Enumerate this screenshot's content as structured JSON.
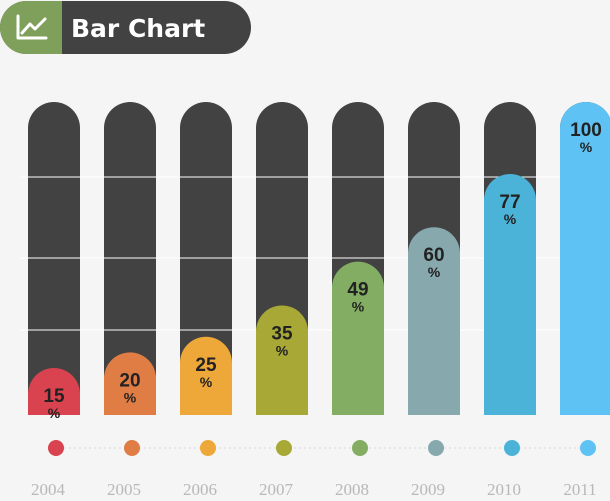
{
  "chart_data": {
    "type": "bar",
    "title": "Bar Chart",
    "categories": [
      "2004",
      "2005",
      "2006",
      "2007",
      "2008",
      "2009",
      "2010",
      "2011"
    ],
    "values": [
      15,
      20,
      25,
      35,
      49,
      60,
      77,
      100
    ],
    "value_suffix": "%",
    "ylim": [
      0,
      100
    ],
    "grid": true,
    "colors": [
      "#d9434f",
      "#e07d45",
      "#eea83a",
      "#a8a837",
      "#82ad63",
      "#87a9ad",
      "#4bb3d8",
      "#5ec2f5"
    ],
    "track_color": "#424242",
    "title_icon": "line-chart-icon",
    "title_icon_bg": "#7fa05a",
    "title_bg": "#424242"
  }
}
